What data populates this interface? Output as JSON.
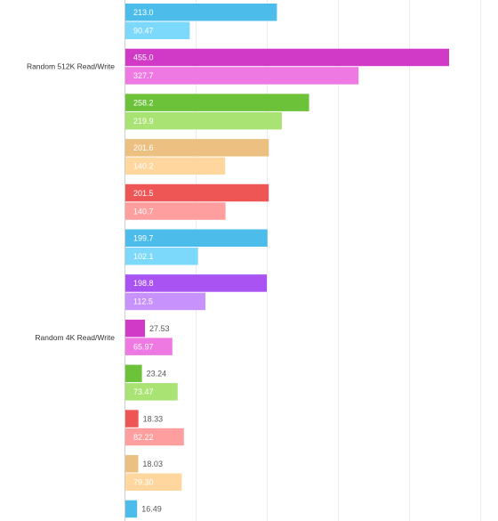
{
  "chart_data": {
    "type": "bar",
    "orientation": "horizontal",
    "xlim": [
      0,
      500
    ],
    "grid": true,
    "legend": "none",
    "series_colors": [
      {
        "read": "#4cbcea",
        "write": "#7dd9fb"
      },
      {
        "read": "#d13ac6",
        "write": "#ef79e2"
      },
      {
        "read": "#6cc239",
        "write": "#a9e374"
      },
      {
        "read": "#ecc080",
        "write": "#ffd79e"
      },
      {
        "read": "#ee5555",
        "write": "#ff9e9e"
      },
      {
        "read": "#a953f3",
        "write": "#c792fb"
      }
    ],
    "groups": [
      {
        "category": "",
        "color_index": 0,
        "read": 213.0,
        "read_label": "213.0",
        "write": 90.47,
        "write_label": "90.47"
      },
      {
        "category": "Random 512K Read/Write",
        "color_index": 1,
        "read": 455.0,
        "read_label": "455.0",
        "write": 327.7,
        "write_label": "327.7"
      },
      {
        "category": "",
        "color_index": 2,
        "read": 258.2,
        "read_label": "258.2",
        "write": 219.9,
        "write_label": "219.9"
      },
      {
        "category": "",
        "color_index": 3,
        "read": 201.6,
        "read_label": "201.6",
        "write": 140.2,
        "write_label": "140.2"
      },
      {
        "category": "",
        "color_index": 4,
        "read": 201.5,
        "read_label": "201.5",
        "write": 140.7,
        "write_label": "140.7"
      },
      {
        "category": "",
        "color_index": 0,
        "read": 199.7,
        "read_label": "199.7",
        "write": 102.1,
        "write_label": "102.1"
      },
      {
        "category": "",
        "color_index": 5,
        "read": 198.8,
        "read_label": "198.8",
        "write": 112.5,
        "write_label": "112.5"
      },
      {
        "category": "Random 4K Read/Write",
        "color_index": 1,
        "read": 27.53,
        "read_label": "27.53",
        "write": 65.97,
        "write_label": "65.97"
      },
      {
        "category": "",
        "color_index": 2,
        "read": 23.24,
        "read_label": "23.24",
        "write": 73.47,
        "write_label": "73.47"
      },
      {
        "category": "",
        "color_index": 4,
        "read": 18.33,
        "read_label": "18.33",
        "write": 82.22,
        "write_label": "82.22"
      },
      {
        "category": "",
        "color_index": 3,
        "read": 18.03,
        "read_label": "18.03",
        "write": 79.3,
        "write_label": "79.30"
      },
      {
        "category": "",
        "color_index": 0,
        "read": 16.49,
        "read_label": "16.49",
        "write": null,
        "write_label": ""
      }
    ]
  }
}
